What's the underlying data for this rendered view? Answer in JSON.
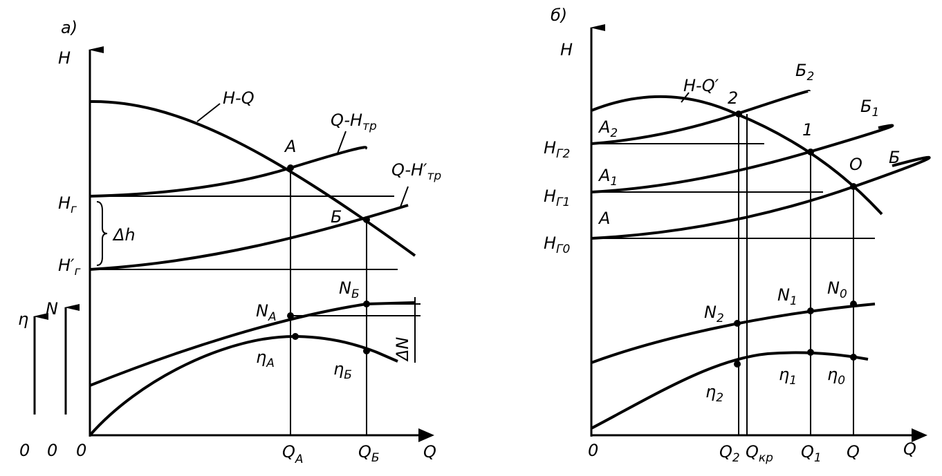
{
  "panel_a": {
    "tag": "а)",
    "h_axis": "H",
    "curve_hq": "H-Q",
    "curve_q_htr": {
      "t": "Q-H",
      "s": "тр"
    },
    "point_a": "A",
    "curve_q_htr2": {
      "t": "Q-H′",
      "s": "тр"
    },
    "h_g": {
      "t": "H",
      "s": "г"
    },
    "point_b": "Б",
    "delta_h": "Δh",
    "h_g2": {
      "t": "H′",
      "s": "г"
    },
    "eta_axis": "η",
    "n_axis": "N",
    "n_a": {
      "t": "N",
      "s": "A"
    },
    "n_b": {
      "t": "N",
      "s": "Б"
    },
    "delta_n": "ΔN",
    "eta_a": {
      "t": "η",
      "s": "A"
    },
    "eta_b": {
      "t": "η",
      "s": "Б"
    },
    "origins": [
      "0",
      "0",
      "0"
    ],
    "q_a": {
      "t": "Q",
      "s": "A"
    },
    "q_b": {
      "t": "Q",
      "s": "Б"
    },
    "q_axis": "Q"
  },
  "panel_b": {
    "tag": "б)",
    "h_axis": "H",
    "curve_hq": "H-Q′",
    "b2": {
      "t": "Б",
      "s": "2"
    },
    "pt2": "2",
    "a2": {
      "t": "A",
      "s": "2"
    },
    "hg2": {
      "t": "H",
      "s": "Г2"
    },
    "pt1": "1",
    "b1": {
      "t": "Б",
      "s": "1"
    },
    "a1": {
      "t": "A",
      "s": "1"
    },
    "hg1": {
      "t": "H",
      "s": "Г1"
    },
    "pt0": "O",
    "b0": "Б",
    "a0": "A",
    "hg0": {
      "t": "H",
      "s": "Г0"
    },
    "n2": {
      "t": "N",
      "s": "2"
    },
    "n1": {
      "t": "N",
      "s": "1"
    },
    "n0": {
      "t": "N",
      "s": "0"
    },
    "eta2": {
      "t": "η",
      "s": "2"
    },
    "eta1": {
      "t": "η",
      "s": "1"
    },
    "eta0": {
      "t": "η",
      "s": "0"
    },
    "origin": "0",
    "q2": {
      "t": "Q",
      "s": "2"
    },
    "qkr": {
      "t": "Q",
      "s": "кр"
    },
    "q1": {
      "t": "Q",
      "s": "1"
    },
    "q": "Q",
    "q_axis": "Q"
  }
}
